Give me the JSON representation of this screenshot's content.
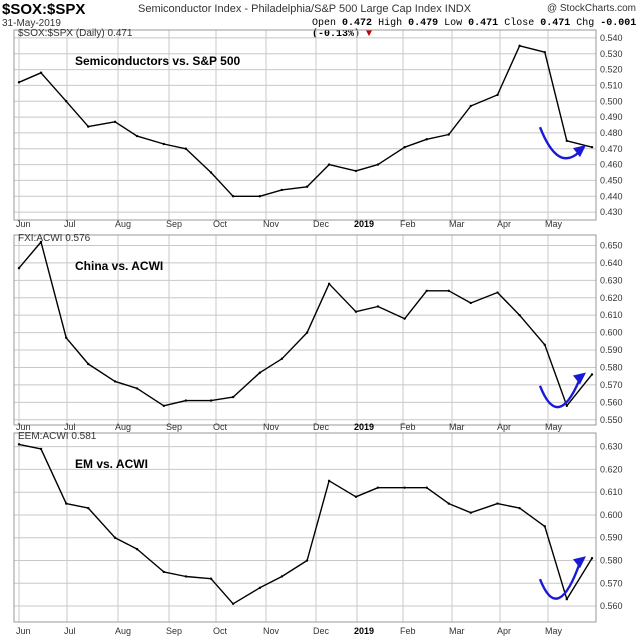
{
  "header": {
    "symbol": "$SOX:$SPX",
    "description": "Semiconductor Index - Philadelphia/S&P 500 Large Cap Index  INDX",
    "credit": "@ StockCharts.com",
    "date": "31-May-2019",
    "open_label": "Open",
    "open": "0.472",
    "high_label": "High",
    "high": "0.479",
    "low_label": "Low",
    "low": "0.471",
    "close_label": "Close",
    "close": "0.471",
    "chg_label": "Chg",
    "chg": "-0.001 (-0.13%)",
    "chg_marker": "▼"
  },
  "colors": {
    "line": "#000000",
    "grid": "#c8c8c8",
    "arrow": "#1a1ad6",
    "frame": "#999999"
  },
  "x_axis": {
    "labels": [
      "Jun",
      "Jul",
      "Aug",
      "Sep",
      "Oct",
      "Nov",
      "Dec",
      "2019",
      "Feb",
      "Mar",
      "Apr",
      "May"
    ],
    "bold_label": "2019"
  },
  "chart_data": [
    {
      "type": "line",
      "legend": "$SOX:$SPX (Daily) 0.471",
      "title": "Semiconductors vs. S&P 500",
      "ylim": [
        0.425,
        0.545
      ],
      "yticks": [
        0.43,
        0.44,
        0.45,
        0.46,
        0.47,
        0.48,
        0.49,
        0.5,
        0.51,
        0.52,
        0.53,
        0.54
      ],
      "ytick_labels": [
        "0.430",
        "0.440",
        "0.450",
        "0.460",
        "0.470",
        "0.480",
        "0.490",
        "0.500",
        "0.510",
        "0.520",
        "0.530",
        "0.540"
      ],
      "x": [
        "2018-06-01",
        "2018-06-15",
        "2018-07-01",
        "2018-07-15",
        "2018-08-01",
        "2018-08-15",
        "2018-09-01",
        "2018-09-15",
        "2018-10-01",
        "2018-10-15",
        "2018-11-01",
        "2018-11-15",
        "2018-12-01",
        "2018-12-15",
        "2019-01-01",
        "2019-01-15",
        "2019-02-01",
        "2019-02-15",
        "2019-03-01",
        "2019-03-15",
        "2019-04-01",
        "2019-04-15",
        "2019-05-01",
        "2019-05-15",
        "2019-05-31"
      ],
      "values": [
        0.512,
        0.518,
        0.5,
        0.484,
        0.487,
        0.478,
        0.473,
        0.47,
        0.455,
        0.44,
        0.44,
        0.444,
        0.446,
        0.46,
        0.456,
        0.46,
        0.471,
        0.476,
        0.479,
        0.497,
        0.504,
        0.535,
        0.531,
        0.475,
        0.471
      ],
      "annotation": "curved-arrow"
    },
    {
      "type": "line",
      "legend": "FXI:ACWI 0.576",
      "title": "China vs. ACWI",
      "ylim": [
        0.547,
        0.656
      ],
      "yticks": [
        0.55,
        0.56,
        0.57,
        0.58,
        0.59,
        0.6,
        0.61,
        0.62,
        0.63,
        0.64,
        0.65
      ],
      "ytick_labels": [
        "0.550",
        "0.560",
        "0.570",
        "0.580",
        "0.590",
        "0.600",
        "0.610",
        "0.620",
        "0.630",
        "0.640",
        "0.650"
      ],
      "x": [
        "2018-06-01",
        "2018-06-15",
        "2018-07-01",
        "2018-07-15",
        "2018-08-01",
        "2018-08-15",
        "2018-09-01",
        "2018-09-15",
        "2018-10-01",
        "2018-10-15",
        "2018-11-01",
        "2018-11-15",
        "2018-12-01",
        "2018-12-15",
        "2019-01-01",
        "2019-01-15",
        "2019-02-01",
        "2019-02-15",
        "2019-03-01",
        "2019-03-15",
        "2019-04-01",
        "2019-04-15",
        "2019-05-01",
        "2019-05-15",
        "2019-05-31"
      ],
      "values": [
        0.637,
        0.652,
        0.597,
        0.582,
        0.572,
        0.568,
        0.558,
        0.561,
        0.561,
        0.563,
        0.577,
        0.585,
        0.6,
        0.628,
        0.612,
        0.615,
        0.608,
        0.624,
        0.624,
        0.617,
        0.623,
        0.61,
        0.593,
        0.558,
        0.576
      ],
      "annotation": "curved-arrow"
    },
    {
      "type": "line",
      "legend": "EEM:ACWI 0.581",
      "title": "EM vs. ACWI",
      "ylim": [
        0.553,
        0.636
      ],
      "yticks": [
        0.56,
        0.57,
        0.58,
        0.59,
        0.6,
        0.61,
        0.62,
        0.63
      ],
      "ytick_labels": [
        "0.560",
        "0.570",
        "0.580",
        "0.590",
        "0.600",
        "0.610",
        "0.620",
        "0.630"
      ],
      "x": [
        "2018-06-01",
        "2018-06-15",
        "2018-07-01",
        "2018-07-15",
        "2018-08-01",
        "2018-08-15",
        "2018-09-01",
        "2018-09-15",
        "2018-10-01",
        "2018-10-15",
        "2018-11-01",
        "2018-11-15",
        "2018-12-01",
        "2018-12-15",
        "2019-01-01",
        "2019-01-15",
        "2019-02-01",
        "2019-02-15",
        "2019-03-01",
        "2019-03-15",
        "2019-04-01",
        "2019-04-15",
        "2019-05-01",
        "2019-05-15",
        "2019-05-31"
      ],
      "values": [
        0.631,
        0.629,
        0.605,
        0.603,
        0.59,
        0.585,
        0.575,
        0.573,
        0.572,
        0.561,
        0.568,
        0.573,
        0.58,
        0.615,
        0.608,
        0.612,
        0.612,
        0.612,
        0.605,
        0.601,
        0.605,
        0.603,
        0.595,
        0.563,
        0.581
      ],
      "annotation": "curved-arrow"
    }
  ]
}
